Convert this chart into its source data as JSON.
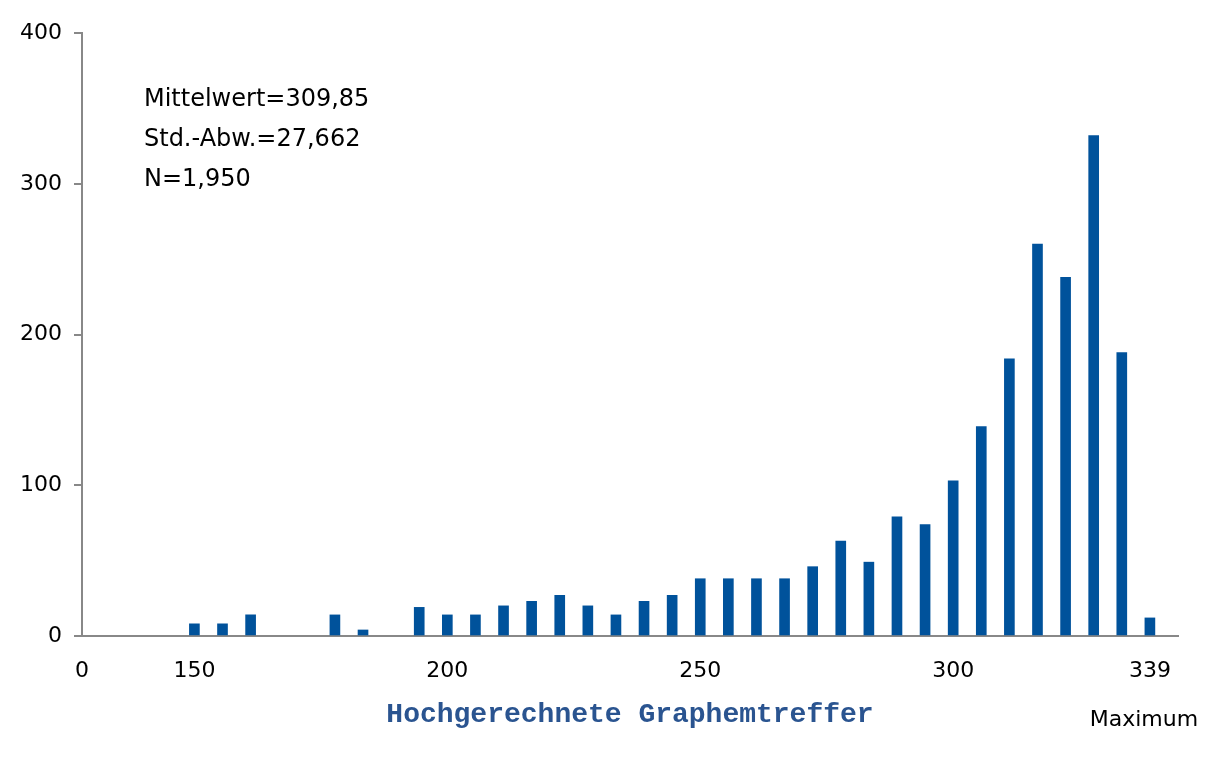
{
  "chart_data": {
    "type": "bar",
    "xlabel": "Hochgerechnete Graphemtreffer",
    "categories": [
      "0",
      null,
      null,
      null,
      "150",
      null,
      null,
      null,
      null,
      null,
      null,
      null,
      null,
      "200",
      null,
      null,
      null,
      null,
      null,
      null,
      null,
      null,
      "250",
      null,
      null,
      null,
      null,
      null,
      null,
      null,
      null,
      "300",
      null,
      null,
      null,
      null,
      null,
      null,
      "339",
      null
    ],
    "values": [
      null,
      null,
      null,
      null,
      8,
      8,
      14,
      null,
      null,
      14,
      4,
      null,
      19,
      14,
      14,
      20,
      23,
      27,
      20,
      14,
      23,
      27,
      38,
      38,
      38,
      38,
      46,
      63,
      49,
      79,
      74,
      103,
      139,
      184,
      260,
      238,
      332,
      188,
      12,
      null
    ],
    "color": "#00529b",
    "ylim": [
      0,
      400
    ],
    "yticks": [
      0,
      100,
      200,
      300,
      400
    ],
    "grid": false,
    "annotations": [
      "Mittelwert=309,85",
      "Std.-Abw.=27,662",
      "N=1,950",
      "Maximum"
    ]
  }
}
